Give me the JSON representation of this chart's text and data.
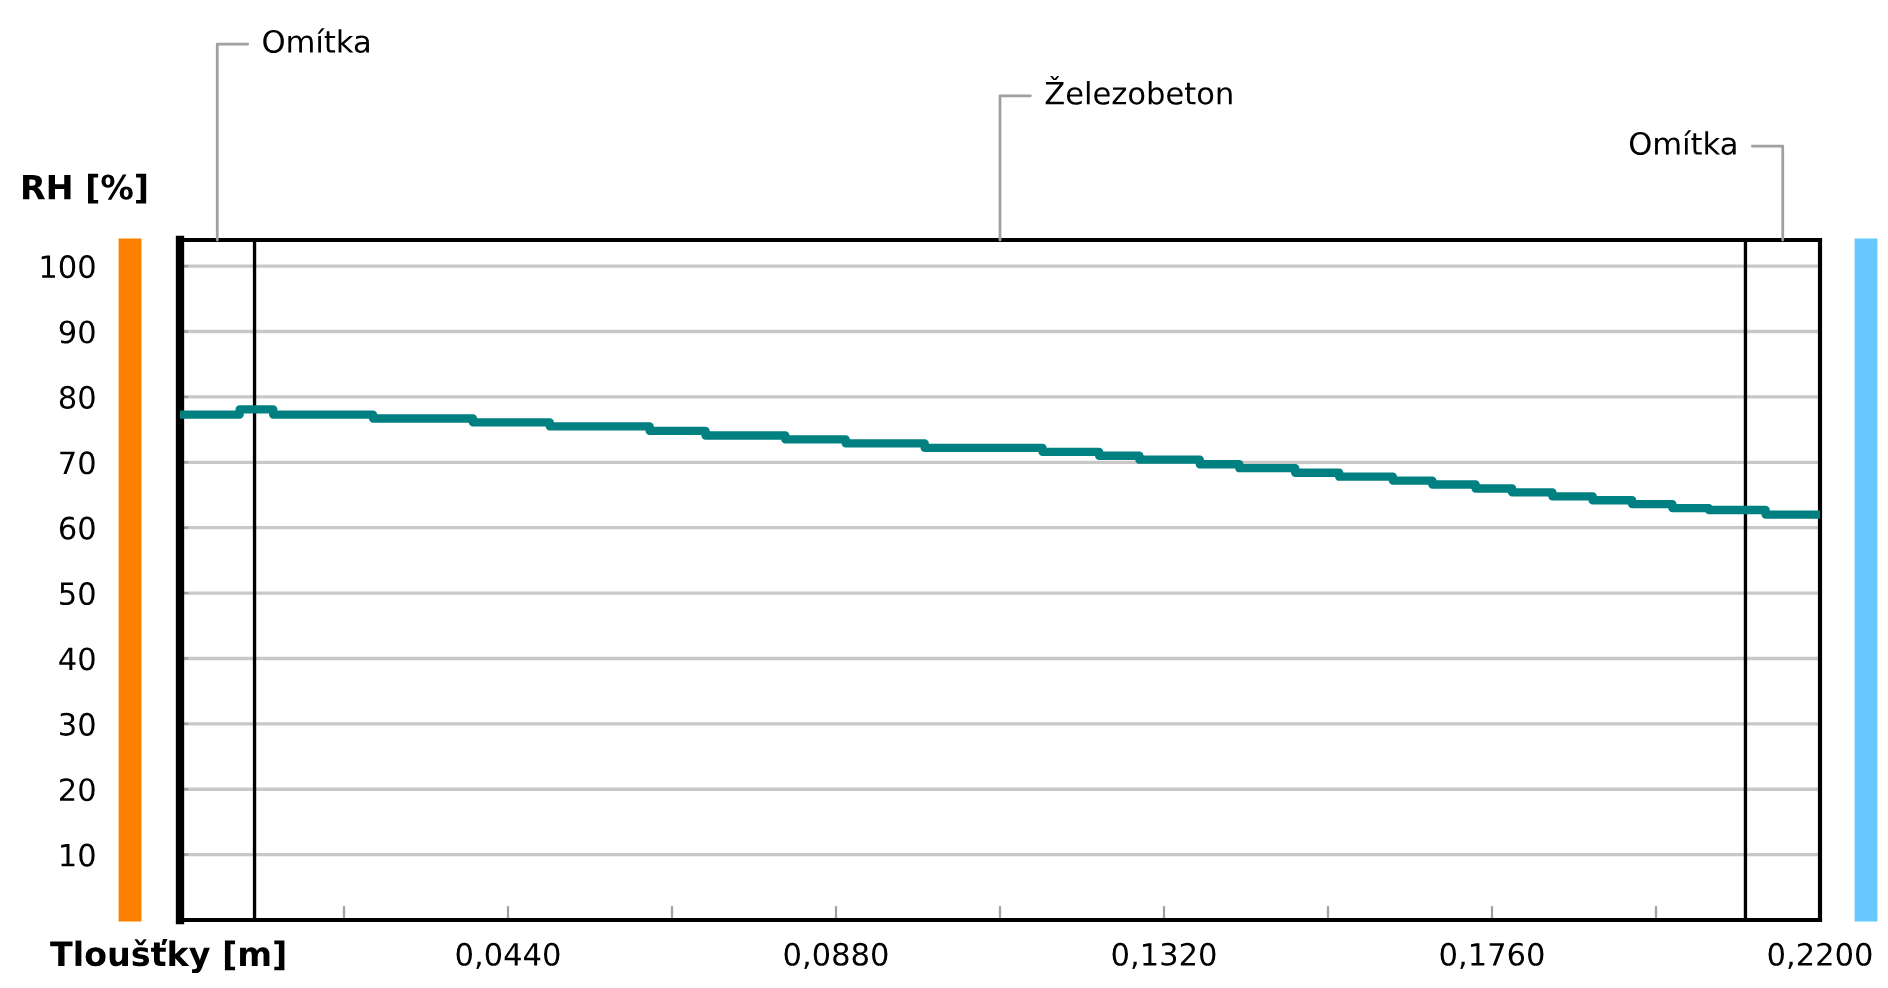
{
  "chart_data": {
    "type": "step",
    "xlabel": "Tloušťky [m]",
    "ylabel": "RH [%]",
    "series": [
      {
        "color": "#008080",
        "x": [
          0,
          0.008,
          0.0125,
          0.0259,
          0.0393,
          0.0496,
          0.063,
          0.0705,
          0.0812,
          0.0893,
          0.0999,
          0.1157,
          0.1233,
          0.1287,
          0.1368,
          0.1421,
          0.1496,
          0.1555,
          0.1627,
          0.168,
          0.1738,
          0.1787,
          0.1841,
          0.1895,
          0.1948,
          0.2002,
          0.2051,
          0.2127,
          0.22
        ],
        "values": [
          77.3,
          78.1,
          77.3,
          76.7,
          76.1,
          75.5,
          74.8,
          74.1,
          73.5,
          72.9,
          72.2,
          71.6,
          71.0,
          70.4,
          69.7,
          69.1,
          68.4,
          67.8,
          67.2,
          66.6,
          66.0,
          65.4,
          64.8,
          64.2,
          63.6,
          63.0,
          62.7,
          62.0,
          62.0
        ]
      }
    ],
    "xlim": [
      0,
      0.22
    ],
    "ylim": [
      0,
      104
    ],
    "xticks": [
      {
        "value": 0.022,
        "label": null
      },
      {
        "value": 0.044,
        "label": "0,0440"
      },
      {
        "value": 0.066,
        "label": null
      },
      {
        "value": 0.088,
        "label": "0,0880"
      },
      {
        "value": 0.11,
        "label": null
      },
      {
        "value": 0.132,
        "label": "0,1320"
      },
      {
        "value": 0.154,
        "label": null
      },
      {
        "value": 0.176,
        "label": "0,1760"
      },
      {
        "value": 0.198,
        "label": null
      },
      {
        "value": 0.22,
        "label": "0,2200"
      }
    ],
    "yticks": [
      10,
      20,
      30,
      40,
      50,
      60,
      70,
      80,
      90,
      100
    ],
    "grid": "y",
    "ref_lines": [
      {
        "axis": "x",
        "value": 0.01,
        "color": "#000000"
      },
      {
        "axis": "x",
        "value": 0.21,
        "color": "#000000"
      }
    ],
    "annotations": [
      "Omítka",
      "Železobeton",
      "Omítka"
    ]
  }
}
